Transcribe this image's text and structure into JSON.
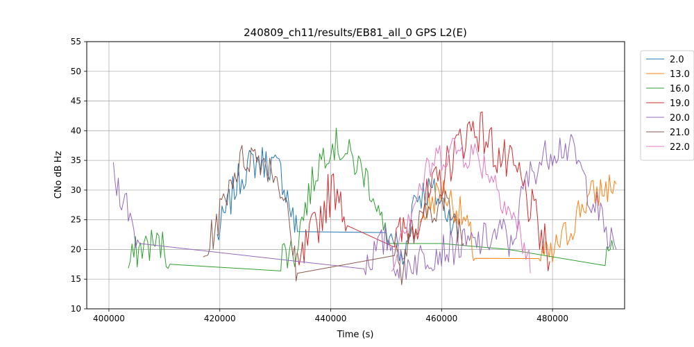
{
  "chart_data": {
    "type": "line",
    "title": "240809_ch11/results/EB81_all_0 GPS L2(E)",
    "xlabel": "Time (s)",
    "ylabel": "CNo dB Hz",
    "xlim": [
      396000,
      493000
    ],
    "ylim": [
      10,
      55
    ],
    "xticks": [
      400000,
      420000,
      440000,
      460000,
      480000
    ],
    "yticks": [
      10,
      15,
      20,
      25,
      30,
      35,
      40,
      45,
      50,
      55
    ],
    "grid": true,
    "legend_position": "outside-right",
    "series": [
      {
        "name": "2.0",
        "color": "#1f77b4",
        "noise": 3,
        "points": [
          [
            419500,
            22
          ],
          [
            421000,
            26
          ],
          [
            423000,
            31
          ],
          [
            425000,
            34
          ],
          [
            427000,
            35
          ],
          [
            429000,
            34.5
          ],
          [
            431000,
            33
          ],
          [
            432500,
            28
          ],
          [
            433500,
            24
          ],
          [
            434000,
            23
          ],
          [
            450000,
            22.5
          ],
          [
            451500,
            22
          ],
          [
            453000,
            17
          ],
          [
            455000,
            29
          ],
          [
            458000,
            30
          ],
          [
            460000,
            28
          ],
          [
            462000,
            25
          ],
          [
            463000,
            22
          ]
        ]
      },
      {
        "name": "13.0",
        "color": "#ff7f0e",
        "noise": 3,
        "points": [
          [
            456000,
            25
          ],
          [
            458000,
            28
          ],
          [
            460000,
            30
          ],
          [
            462000,
            28
          ],
          [
            464000,
            25
          ],
          [
            465500,
            21
          ],
          [
            466000,
            18.5
          ],
          [
            477500,
            18.5
          ],
          [
            478500,
            19
          ],
          [
            480000,
            18.5
          ],
          [
            481000,
            21
          ],
          [
            482000,
            22
          ],
          [
            483000,
            23
          ],
          [
            484000,
            25
          ],
          [
            485000,
            27
          ],
          [
            487000,
            29
          ],
          [
            489000,
            30
          ],
          [
            491500,
            31
          ]
        ]
      },
      {
        "name": "16.0",
        "color": "#2ca02c",
        "noise": 3,
        "points": [
          [
            403500,
            17
          ],
          [
            404500,
            19
          ],
          [
            406000,
            20.5
          ],
          [
            408000,
            21
          ],
          [
            410000,
            20.5
          ],
          [
            411000,
            17.5
          ],
          [
            431000,
            19
          ],
          [
            432500,
            20
          ],
          [
            433500,
            19
          ],
          [
            434500,
            24
          ],
          [
            436000,
            29
          ],
          [
            438000,
            35
          ],
          [
            440000,
            38
          ],
          [
            442000,
            37
          ],
          [
            444000,
            35
          ],
          [
            446000,
            33
          ],
          [
            448000,
            29
          ],
          [
            449500,
            23
          ],
          [
            450500,
            21
          ],
          [
            460000,
            21
          ],
          [
            472000,
            20
          ],
          [
            489500,
            19.5
          ],
          [
            491000,
            20
          ]
        ]
      },
      {
        "name": "19.0",
        "color": "#d62728",
        "noise": 4,
        "points": [
          [
            434000,
            15.5
          ],
          [
            435500,
            20
          ],
          [
            437500,
            24
          ],
          [
            439500,
            29
          ],
          [
            441500,
            31
          ],
          [
            443000,
            24
          ],
          [
            451500,
            21
          ],
          [
            452500,
            22
          ],
          [
            454000,
            24
          ],
          [
            456000,
            26
          ],
          [
            458000,
            29
          ],
          [
            460000,
            32
          ],
          [
            462000,
            36
          ],
          [
            464000,
            39
          ],
          [
            466000,
            41
          ],
          [
            468000,
            39
          ],
          [
            470000,
            36
          ],
          [
            472000,
            34
          ],
          [
            474000,
            32
          ],
          [
            476000,
            27
          ],
          [
            478000,
            22
          ],
          [
            479500,
            18
          ]
        ]
      },
      {
        "name": "20.0",
        "color": "#9467bd",
        "noise": 3,
        "points": [
          [
            400800,
            32
          ],
          [
            402000,
            30
          ],
          [
            403500,
            27
          ],
          [
            404500,
            23
          ],
          [
            405500,
            21
          ],
          [
            446000,
            17.5
          ],
          [
            447500,
            19
          ],
          [
            449500,
            21
          ],
          [
            450500,
            22
          ],
          [
            452000,
            17
          ],
          [
            460000,
            20
          ],
          [
            466000,
            21
          ],
          [
            471500,
            23
          ],
          [
            472500,
            20
          ],
          [
            475000,
            31
          ],
          [
            477000,
            34
          ],
          [
            480000,
            37
          ],
          [
            482000,
            37.5
          ],
          [
            484000,
            36
          ],
          [
            486000,
            31
          ],
          [
            488000,
            27
          ],
          [
            490000,
            22
          ],
          [
            491500,
            20
          ]
        ]
      },
      {
        "name": "21.0",
        "color": "#8c564b",
        "noise": 3,
        "points": [
          [
            417000,
            18
          ],
          [
            418500,
            22
          ],
          [
            420000,
            26
          ],
          [
            422000,
            32
          ],
          [
            424000,
            35
          ],
          [
            426000,
            36
          ],
          [
            428000,
            35
          ],
          [
            430000,
            33
          ],
          [
            431500,
            29
          ],
          [
            432500,
            24
          ],
          [
            433500,
            18
          ],
          [
            434000,
            16
          ],
          [
            451500,
            21
          ],
          [
            452500,
            16
          ],
          [
            454000,
            21
          ],
          [
            456000,
            24
          ],
          [
            458000,
            27
          ],
          [
            460000,
            28
          ],
          [
            462000,
            26
          ],
          [
            463500,
            23
          ],
          [
            464000,
            21
          ]
        ]
      },
      {
        "name": "22.0",
        "color": "#e377c2",
        "noise": 3,
        "points": [
          [
            451000,
            16
          ],
          [
            452000,
            22
          ],
          [
            454000,
            26
          ],
          [
            456000,
            30
          ],
          [
            458000,
            34
          ],
          [
            460000,
            36
          ],
          [
            462000,
            37
          ],
          [
            464000,
            36.5
          ],
          [
            466000,
            36
          ],
          [
            468000,
            34
          ],
          [
            470000,
            31
          ],
          [
            472000,
            27
          ],
          [
            474000,
            23
          ],
          [
            475500,
            19
          ],
          [
            476000,
            16
          ]
        ]
      }
    ]
  }
}
